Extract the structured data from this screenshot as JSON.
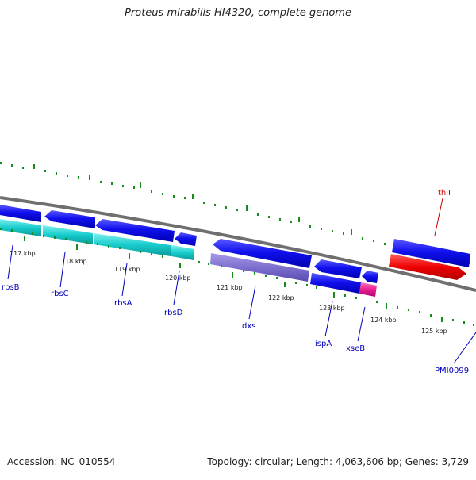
{
  "title": "Proteus mirabilis HI4320, complete genome",
  "accession_text": "Accession: NC_010554",
  "summary_text": "Topology: circular; Length: 4,063,606 bp; Genes: 3,729",
  "colors": {
    "backbone": "#808080",
    "gene_forward": "#0000dd",
    "cds": "#00c8c8",
    "pseudo": "#7d6fcf",
    "rna": "#ee0000",
    "misc": "#e02090",
    "tick": "#1a8a1a",
    "label_blue": "#0000bb",
    "label_red": "#cc0000"
  },
  "kbp_labels": [
    "117 kbp",
    "118 kbp",
    "119 kbp",
    "120 kbp",
    "121 kbp",
    "122 kbp",
    "123 kbp",
    "124 kbp",
    "125 kbp"
  ],
  "gene_labels": [
    "rbsB",
    "rbsC",
    "rbsA",
    "rbsD",
    "dxs",
    "ispA",
    "xseB",
    "PMI0099",
    "thiI"
  ]
}
